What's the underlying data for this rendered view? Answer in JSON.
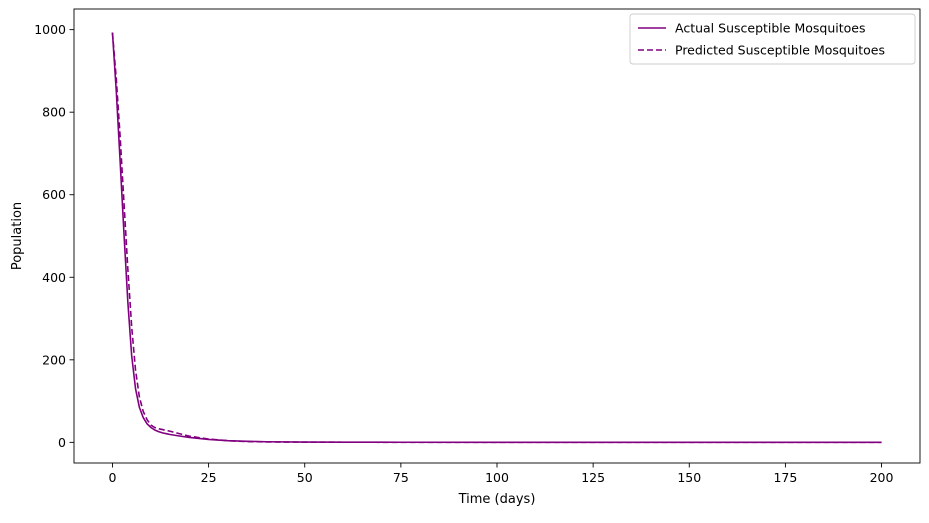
{
  "chart_data": {
    "type": "line",
    "title": "",
    "xlabel": "Time (days)",
    "ylabel": "Population",
    "xlim": [
      -10,
      210
    ],
    "ylim": [
      -50,
      1050
    ],
    "xticks": [
      0,
      25,
      50,
      75,
      100,
      125,
      150,
      175,
      200
    ],
    "yticks": [
      0,
      200,
      400,
      600,
      800,
      1000
    ],
    "grid": false,
    "legend_position": "top-right",
    "series": [
      {
        "name": "Actual Susceptible Mosquitoes",
        "color": "#800080",
        "style": "solid",
        "x": [
          0,
          1,
          2,
          3,
          4,
          5,
          6,
          7,
          8,
          9,
          10,
          11,
          12,
          13,
          14,
          15,
          17,
          20,
          25,
          30,
          35,
          40,
          50,
          60,
          75,
          100,
          125,
          150,
          175,
          200
        ],
        "y": [
          993,
          850,
          680,
          505,
          340,
          210,
          130,
          85,
          60,
          45,
          36,
          30,
          26,
          23,
          21,
          19,
          16,
          12,
          7,
          4,
          2.5,
          1.5,
          0.8,
          0.5,
          0.3,
          0.2,
          0.1,
          0.1,
          0.1,
          0.1
        ]
      },
      {
        "name": "Predicted Susceptible Mosquitoes",
        "color": "#800080",
        "style": "dashed",
        "x": [
          0,
          1,
          2,
          3,
          4,
          5,
          6,
          7,
          8,
          9,
          10,
          11,
          12,
          13,
          14,
          15,
          17,
          20,
          25,
          30,
          35,
          40,
          50,
          60,
          75,
          100,
          125,
          150,
          175,
          200
        ],
        "y": [
          993,
          880,
          740,
          580,
          420,
          280,
          175,
          110,
          75,
          55,
          42,
          36,
          33,
          31,
          29,
          27,
          22,
          15,
          8,
          4,
          2,
          1,
          0.5,
          0.3,
          0.2,
          0.1,
          0.1,
          0.1,
          0.1,
          0.1
        ]
      }
    ]
  }
}
